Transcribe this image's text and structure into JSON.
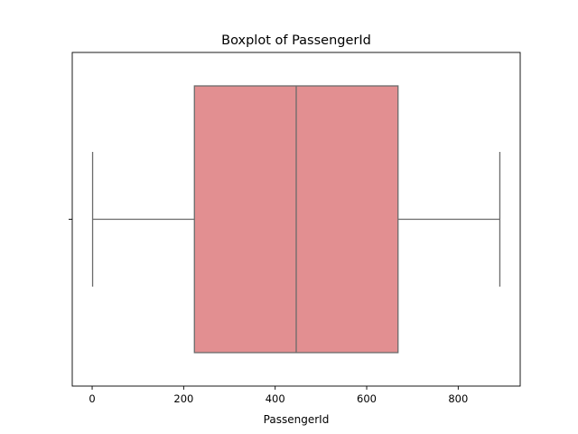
{
  "chart_data": {
    "type": "boxplot",
    "title": "Boxplot of PassengerId",
    "xlabel": "PassengerId",
    "ylabel": "",
    "orientation": "horizontal",
    "xlim": [
      -43.5,
      935.5
    ],
    "xticks": [
      0,
      200,
      400,
      600,
      800
    ],
    "xtick_labels": [
      "0",
      "200",
      "400",
      "600",
      "800"
    ],
    "grid": false,
    "box": {
      "whisker_low": 1,
      "q1": 223.5,
      "median": 446,
      "q3": 668.5,
      "whisker_high": 891
    },
    "colors": {
      "box_fill": "#E28F91",
      "box_line": "#6B6B6B",
      "axes": "#000000"
    }
  }
}
